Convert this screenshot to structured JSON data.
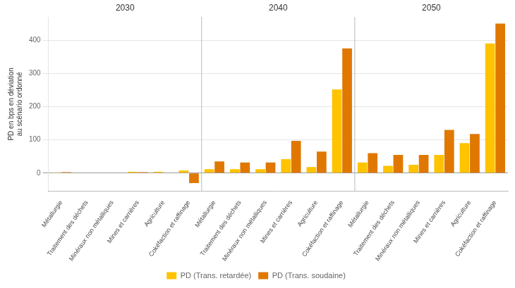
{
  "chart_data": {
    "type": "bar",
    "categories": [
      "Métallurgie",
      "Traitement des déchets",
      "Minéraux non métalliques",
      "Mines et carrières",
      "Agriculture",
      "Cokéfaction et raffinage",
      "Métallurgie",
      "Traitement des déchets",
      "Minéraux non métalliques",
      "Mines et carrières",
      "Agriculture",
      "Cokéfaction et raffinage",
      "Métallurgie",
      "Traitement des déchets",
      "Minéraux non métalliques",
      "Mines et carrières",
      "Agriculture",
      "Cokéfaction et raffinage"
    ],
    "groups": [
      "2030",
      "2040",
      "2050"
    ],
    "series": [
      {
        "name": "PD (Trans. retardée)",
        "color": "#FFC300",
        "values": [
          2,
          1,
          1,
          4,
          4,
          8,
          12,
          12,
          12,
          42,
          18,
          252,
          32,
          22,
          25,
          55,
          90,
          390
        ]
      },
      {
        "name": "PD (Trans. soudaine)",
        "color": "#E07800",
        "values": [
          3,
          1,
          1,
          3,
          1,
          -30,
          35,
          32,
          32,
          97,
          65,
          375,
          60,
          55,
          55,
          130,
          118,
          450
        ]
      }
    ],
    "ylabel": "PD en bps en déviation\nau scénario ordonné",
    "ylim": [
      -55,
      470
    ],
    "yticks": [
      0,
      100,
      200,
      300,
      400
    ],
    "grid": true,
    "legend": "bottom"
  }
}
